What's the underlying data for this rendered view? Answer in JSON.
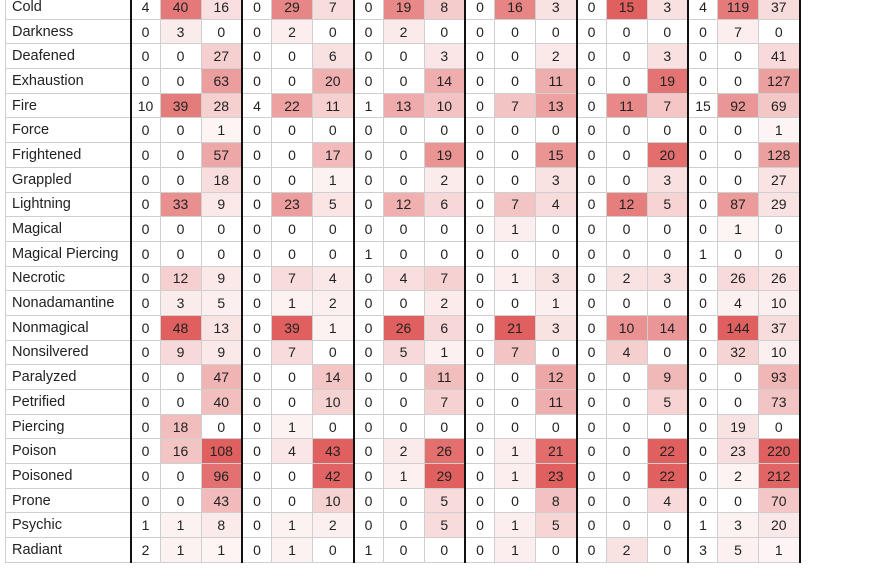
{
  "table": {
    "groups": 6,
    "heat_color": "#e06060",
    "rows": [
      {
        "label": "Cold",
        "values": [
          4,
          40,
          16,
          0,
          29,
          7,
          0,
          19,
          8,
          0,
          16,
          3,
          0,
          15,
          3,
          4,
          119,
          37
        ]
      },
      {
        "label": "Darkness",
        "values": [
          0,
          3,
          0,
          0,
          2,
          0,
          0,
          2,
          0,
          0,
          0,
          0,
          0,
          0,
          0,
          0,
          7,
          0
        ]
      },
      {
        "label": "Deafened",
        "values": [
          0,
          0,
          27,
          0,
          0,
          6,
          0,
          0,
          3,
          0,
          0,
          2,
          0,
          0,
          3,
          0,
          0,
          41
        ]
      },
      {
        "label": "Exhaustion",
        "values": [
          0,
          0,
          63,
          0,
          0,
          20,
          0,
          0,
          14,
          0,
          0,
          11,
          0,
          0,
          19,
          0,
          0,
          127
        ]
      },
      {
        "label": "Fire",
        "values": [
          10,
          39,
          28,
          4,
          22,
          11,
          1,
          13,
          10,
          0,
          7,
          13,
          0,
          11,
          7,
          15,
          92,
          69
        ]
      },
      {
        "label": "Force",
        "values": [
          0,
          0,
          1,
          0,
          0,
          0,
          0,
          0,
          0,
          0,
          0,
          0,
          0,
          0,
          0,
          0,
          0,
          1
        ]
      },
      {
        "label": "Frightened",
        "values": [
          0,
          0,
          57,
          0,
          0,
          17,
          0,
          0,
          19,
          0,
          0,
          15,
          0,
          0,
          20,
          0,
          0,
          128
        ]
      },
      {
        "label": "Grappled",
        "values": [
          0,
          0,
          18,
          0,
          0,
          1,
          0,
          0,
          2,
          0,
          0,
          3,
          0,
          0,
          3,
          0,
          0,
          27
        ]
      },
      {
        "label": "Lightning",
        "values": [
          0,
          33,
          9,
          0,
          23,
          5,
          0,
          12,
          6,
          0,
          7,
          4,
          0,
          12,
          5,
          0,
          87,
          29
        ]
      },
      {
        "label": "Magical",
        "values": [
          0,
          0,
          0,
          0,
          0,
          0,
          0,
          0,
          0,
          0,
          1,
          0,
          0,
          0,
          0,
          0,
          1,
          0
        ]
      },
      {
        "label": "Magical Piercing",
        "values": [
          0,
          0,
          0,
          0,
          0,
          0,
          1,
          0,
          0,
          0,
          0,
          0,
          0,
          0,
          0,
          1,
          0,
          0
        ]
      },
      {
        "label": "Necrotic",
        "values": [
          0,
          12,
          9,
          0,
          7,
          4,
          0,
          4,
          7,
          0,
          1,
          3,
          0,
          2,
          3,
          0,
          26,
          26
        ]
      },
      {
        "label": "Nonadamantine",
        "values": [
          0,
          3,
          5,
          0,
          1,
          2,
          0,
          0,
          2,
          0,
          0,
          1,
          0,
          0,
          0,
          0,
          4,
          10
        ]
      },
      {
        "label": "Nonmagical",
        "values": [
          0,
          48,
          13,
          0,
          39,
          1,
          0,
          26,
          6,
          0,
          21,
          3,
          0,
          10,
          14,
          0,
          144,
          37
        ]
      },
      {
        "label": "Nonsilvered",
        "values": [
          0,
          9,
          9,
          0,
          7,
          0,
          0,
          5,
          1,
          0,
          7,
          0,
          0,
          4,
          0,
          0,
          32,
          10
        ]
      },
      {
        "label": "Paralyzed",
        "values": [
          0,
          0,
          47,
          0,
          0,
          14,
          0,
          0,
          11,
          0,
          0,
          12,
          0,
          0,
          9,
          0,
          0,
          93
        ]
      },
      {
        "label": "Petrified",
        "values": [
          0,
          0,
          40,
          0,
          0,
          10,
          0,
          0,
          7,
          0,
          0,
          11,
          0,
          0,
          5,
          0,
          0,
          73
        ]
      },
      {
        "label": "Piercing",
        "values": [
          0,
          18,
          0,
          0,
          1,
          0,
          0,
          0,
          0,
          0,
          0,
          0,
          0,
          0,
          0,
          0,
          19,
          0
        ]
      },
      {
        "label": "Poison",
        "values": [
          0,
          16,
          108,
          0,
          4,
          43,
          0,
          2,
          26,
          0,
          1,
          21,
          0,
          0,
          22,
          0,
          23,
          220
        ]
      },
      {
        "label": "Poisoned",
        "values": [
          0,
          0,
          96,
          0,
          0,
          42,
          0,
          1,
          29,
          0,
          1,
          23,
          0,
          0,
          22,
          0,
          2,
          212
        ]
      },
      {
        "label": "Prone",
        "values": [
          0,
          0,
          43,
          0,
          0,
          10,
          0,
          0,
          5,
          0,
          0,
          8,
          0,
          0,
          4,
          0,
          0,
          70
        ]
      },
      {
        "label": "Psychic",
        "values": [
          1,
          1,
          8,
          0,
          1,
          2,
          0,
          0,
          5,
          0,
          1,
          5,
          0,
          0,
          0,
          1,
          3,
          20
        ]
      },
      {
        "label": "Radiant",
        "values": [
          2,
          1,
          1,
          0,
          1,
          0,
          1,
          0,
          0,
          0,
          1,
          0,
          0,
          2,
          0,
          3,
          5,
          1
        ]
      }
    ]
  }
}
